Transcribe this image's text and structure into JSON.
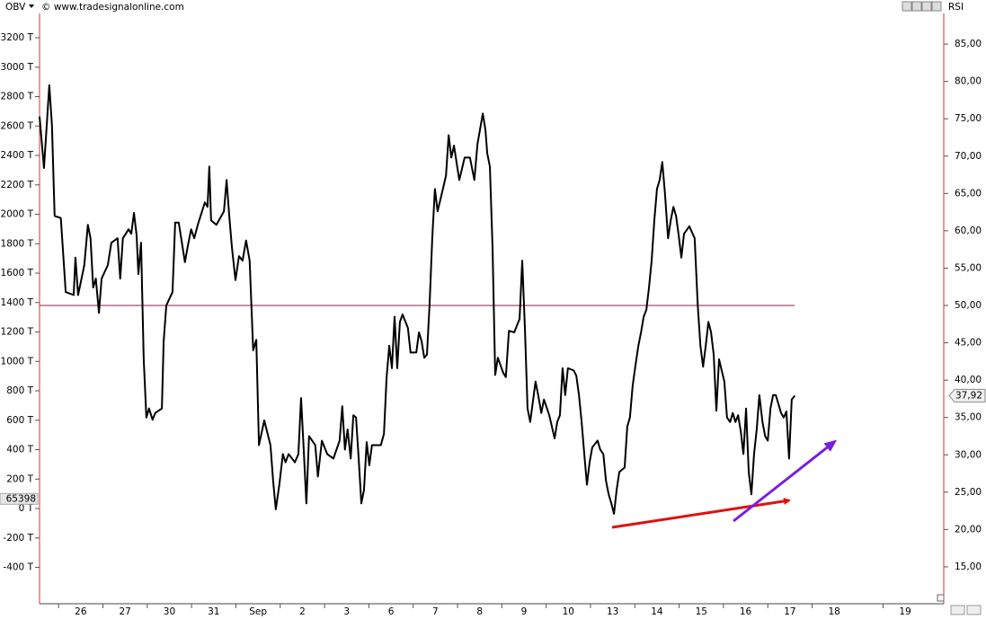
{
  "chart_data": {
    "type": "line",
    "indicator_left": "OBV",
    "indicator_right": "RSI",
    "source": "© www.tradesignalonline.com",
    "xlim": [
      0.07,
      20.47
    ],
    "xticks": [
      {
        "value": 1,
        "label": "26"
      },
      {
        "value": 2,
        "label": "27"
      },
      {
        "value": 3,
        "label": "30"
      },
      {
        "value": 4,
        "label": "31"
      },
      {
        "value": 5,
        "label": "Sep"
      },
      {
        "value": 6,
        "label": "2"
      },
      {
        "value": 7,
        "label": "3"
      },
      {
        "value": 8,
        "label": "6"
      },
      {
        "value": 9,
        "label": "7"
      },
      {
        "value": 10,
        "label": "8"
      },
      {
        "value": 11,
        "label": "9"
      },
      {
        "value": 12,
        "label": "10"
      },
      {
        "value": 13,
        "label": "13"
      },
      {
        "value": 14,
        "label": "14"
      },
      {
        "value": 15,
        "label": "15"
      },
      {
        "value": 16,
        "label": "16"
      },
      {
        "value": 17,
        "label": "17"
      },
      {
        "value": 18,
        "label": "18"
      },
      {
        "value": 19.6,
        "label": "19"
      }
    ],
    "ylim": [
      10.3,
      89.1
    ],
    "yticks": [
      {
        "value": 85,
        "label": "85,00"
      },
      {
        "value": 80,
        "label": "80,00"
      },
      {
        "value": 75,
        "label": "75,00"
      },
      {
        "value": 70,
        "label": "70,00"
      },
      {
        "value": 65,
        "label": "65,00"
      },
      {
        "value": 60,
        "label": "60,00"
      },
      {
        "value": 55,
        "label": "55,00"
      },
      {
        "value": 50,
        "label": "50,00"
      },
      {
        "value": 45,
        "label": "45,00"
      },
      {
        "value": 40,
        "label": "40,00"
      },
      {
        "value": 35,
        "label": "35,00"
      },
      {
        "value": 30,
        "label": "30,00"
      },
      {
        "value": 25,
        "label": "25,00"
      },
      {
        "value": 20,
        "label": "20,00"
      },
      {
        "value": 15,
        "label": "15,00"
      }
    ],
    "y2lim": [
      -635,
      3365
    ],
    "y2ticks": [
      {
        "value": 3200,
        "label": "3200 T"
      },
      {
        "value": 3000,
        "label": "3000 T"
      },
      {
        "value": 2800,
        "label": "2800 T"
      },
      {
        "value": 2600,
        "label": "2600 T"
      },
      {
        "value": 2400,
        "label": "2400 T"
      },
      {
        "value": 2200,
        "label": "2200 T"
      },
      {
        "value": 2000,
        "label": "2000 T"
      },
      {
        "value": 1800,
        "label": "1800 T"
      },
      {
        "value": 1600,
        "label": "1600 T"
      },
      {
        "value": 1400,
        "label": "1400 T"
      },
      {
        "value": 1200,
        "label": "1200 T"
      },
      {
        "value": 1000,
        "label": "1000 T"
      },
      {
        "value": 800,
        "label": "800 T"
      },
      {
        "value": 600,
        "label": "600 T"
      },
      {
        "value": 400,
        "label": "400 T"
      },
      {
        "value": 200,
        "label": "200 T"
      },
      {
        "value": 0,
        "label": "0 T"
      },
      {
        "value": -200,
        "label": "-200 T"
      },
      {
        "value": -400,
        "label": "-400 T"
      }
    ],
    "y2_marker": {
      "value": 65.398,
      "label": "65398"
    },
    "hline": 50,
    "hline_color": "#8b2252",
    "x": [
      0.07,
      0.17,
      0.29,
      0.35,
      0.41,
      0.55,
      0.66,
      0.84,
      0.88,
      0.94,
      1.08,
      1.16,
      1.22,
      1.28,
      1.34,
      1.41,
      1.47,
      1.61,
      1.69,
      1.83,
      1.89,
      1.95,
      2.08,
      2.14,
      2.2,
      2.26,
      2.3,
      2.36,
      2.42,
      2.48,
      2.54,
      2.62,
      2.68,
      2.83,
      2.87,
      2.93,
      3.07,
      3.13,
      3.21,
      3.35,
      3.41,
      3.49,
      3.56,
      3.64,
      3.8,
      3.86,
      3.9,
      3.94,
      4.06,
      4.23,
      4.29,
      4.35,
      4.41,
      4.49,
      4.57,
      4.65,
      4.73,
      4.81,
      4.89,
      4.96,
      5.02,
      5.14,
      5.28,
      5.34,
      5.4,
      5.48,
      5.56,
      5.62,
      5.69,
      5.83,
      5.91,
      5.97,
      6.03,
      6.09,
      6.15,
      6.29,
      6.35,
      6.44,
      6.56,
      6.7,
      6.84,
      6.9,
      6.96,
      7.02,
      7.09,
      7.15,
      7.21,
      7.27,
      7.33,
      7.39,
      7.45,
      7.51,
      7.57,
      7.77,
      7.84,
      7.9,
      7.96,
      8.02,
      8.08,
      8.14,
      8.2,
      8.26,
      8.38,
      8.44,
      8.57,
      8.63,
      8.69,
      8.75,
      8.81,
      8.87,
      8.93,
      8.99,
      9.05,
      9.17,
      9.24,
      9.3,
      9.36,
      9.42,
      9.54,
      9.66,
      9.78,
      9.88,
      9.95,
      10.07,
      10.13,
      10.17,
      10.23,
      10.29,
      10.35,
      10.41,
      10.53,
      10.59,
      10.66,
      10.78,
      10.9,
      10.96,
      11.02,
      11.08,
      11.14,
      11.26,
      11.32,
      11.39,
      11.45,
      11.57,
      11.69,
      11.75,
      11.81,
      11.87,
      11.93,
      11.99,
      12.12,
      12.18,
      12.24,
      12.3,
      12.36,
      12.42,
      12.48,
      12.54,
      12.66,
      12.72,
      12.79,
      12.85,
      12.91,
      12.97,
      13.03,
      13.09,
      13.15,
      13.27,
      13.33,
      13.39,
      13.45,
      13.52,
      13.58,
      13.64,
      13.7,
      13.76,
      13.82,
      13.88,
      13.94,
      14.0,
      14.06,
      14.12,
      14.18,
      14.25,
      14.31,
      14.37,
      14.43,
      14.49,
      14.55,
      14.61,
      14.73,
      14.85,
      14.92,
      14.98,
      15.04,
      15.1,
      15.16,
      15.22,
      15.28,
      15.34,
      15.4,
      15.52,
      15.58,
      15.65,
      15.71,
      15.77,
      15.83,
      15.89,
      15.95,
      16.01,
      16.07,
      16.13,
      16.19,
      16.25,
      16.31,
      16.38,
      16.44,
      16.5,
      16.56,
      16.62,
      16.68,
      16.8,
      16.86,
      16.92,
      16.98,
      17.04,
      17.11
    ],
    "series": [
      {
        "name": "RSI",
        "color": "#000000",
        "last_value_label": "37,92",
        "values": [
          75.3,
          68.4,
          79.5,
          74.1,
          62.0,
          61.7,
          51.8,
          51.4,
          56.4,
          51.4,
          55.4,
          60.8,
          59.0,
          52.4,
          53.6,
          49.0,
          53.6,
          55.4,
          58.4,
          59.0,
          53.6,
          59.0,
          60.2,
          59.6,
          62.4,
          59.4,
          54.2,
          58.4,
          42.8,
          35.0,
          36.2,
          34.7,
          35.6,
          36.2,
          45.2,
          50.0,
          51.8,
          61.1,
          61.1,
          55.8,
          57.8,
          60.2,
          59.0,
          60.8,
          63.8,
          63.2,
          68.6,
          61.4,
          60.8,
          62.6,
          66.8,
          62.0,
          57.8,
          53.4,
          56.6,
          56.0,
          58.7,
          56.0,
          44.0,
          45.4,
          31.3,
          34.6,
          31.3,
          26.5,
          22.7,
          26.0,
          30.1,
          29.0,
          30.1,
          29.0,
          30.1,
          37.6,
          30.7,
          23.5,
          32.5,
          31.3,
          27.1,
          31.9,
          30.1,
          29.5,
          31.9,
          36.5,
          30.7,
          33.4,
          29.5,
          35.3,
          35.0,
          29.5,
          23.5,
          25.3,
          31.7,
          28.6,
          31.3,
          31.3,
          32.8,
          40.4,
          44.6,
          41.6,
          48.5,
          41.6,
          47.8,
          48.8,
          47.0,
          43.7,
          43.7,
          46.4,
          45.2,
          43.0,
          43.4,
          50.2,
          59.0,
          65.6,
          62.6,
          65.6,
          67.4,
          72.8,
          69.8,
          71.4,
          66.8,
          69.8,
          69.8,
          66.8,
          71.6,
          75.7,
          73.5,
          70.4,
          68.6,
          57.8,
          40.7,
          43.0,
          41.0,
          40.4,
          46.6,
          46.4,
          48.2,
          56.0,
          47.0,
          36.2,
          34.4,
          39.8,
          38.0,
          35.6,
          37.4,
          35.3,
          32.2,
          34.4,
          35.3,
          41.6,
          38.0,
          41.6,
          41.3,
          40.6,
          38.0,
          34.4,
          30.1,
          26.0,
          29.0,
          31.0,
          31.9,
          30.7,
          30.1,
          26.5,
          24.7,
          23.5,
          22.1,
          25.3,
          27.7,
          28.3,
          33.8,
          35.0,
          39.2,
          42.2,
          44.6,
          46.4,
          48.5,
          49.4,
          52.4,
          56.0,
          61.4,
          65.6,
          66.8,
          69.2,
          65.0,
          59.0,
          61.4,
          63.2,
          62.0,
          59.4,
          56.4,
          59.6,
          60.6,
          59.0,
          50.0,
          44.6,
          41.8,
          44.6,
          47.8,
          46.4,
          43.4,
          35.9,
          42.8,
          39.8,
          35.0,
          34.4,
          35.6,
          34.4,
          35.3,
          33.2,
          30.1,
          36.2,
          27.7,
          24.7,
          30.1,
          33.4,
          38.0,
          34.4,
          32.5,
          31.9,
          36.2,
          38.0,
          38.0,
          35.6,
          35.0,
          35.8,
          29.5,
          37.4,
          37.92
        ]
      }
    ]
  }
}
